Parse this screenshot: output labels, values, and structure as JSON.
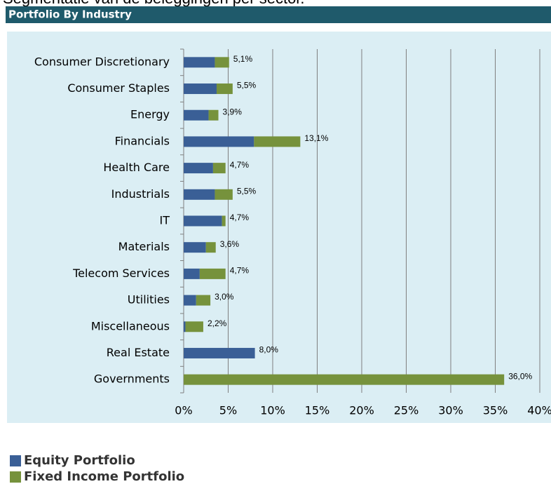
{
  "header_text": "Segmentatie van de beleggingen per sector.",
  "chart_data": {
    "type": "stacked-hbar",
    "title": "Portfolio By Industry",
    "categories": [
      "Consumer Discretionary",
      "Consumer Staples",
      "Energy",
      "Financials",
      "Health Care",
      "Industrials",
      "IT",
      "Materials",
      "Telecom Services",
      "Utilities",
      "Miscellaneous",
      "Real Estate",
      "Governments"
    ],
    "series": [
      {
        "name": "Equity Portfolio",
        "color": "#3a5f96",
        "values": [
          3.5,
          3.7,
          2.8,
          7.9,
          3.3,
          3.5,
          4.3,
          2.5,
          1.8,
          1.4,
          0.2,
          8.0,
          0
        ]
      },
      {
        "name": "Fixed Income Portfolio",
        "color": "#76923c",
        "values": [
          1.6,
          1.8,
          1.1,
          5.2,
          1.4,
          2.0,
          0.4,
          1.1,
          2.9,
          1.6,
          2.0,
          0,
          36.0
        ]
      }
    ],
    "totals": [
      5.1,
      5.5,
      3.9,
      13.1,
      4.7,
      5.5,
      4.7,
      3.6,
      4.7,
      3.0,
      2.2,
      8.0,
      36.0
    ],
    "total_labels": [
      "5,1%",
      "5,5%",
      "3,9%",
      "13,1%",
      "4,7%",
      "5,5%",
      "4,7%",
      "3,6%",
      "4,7%",
      "3,0%",
      "2,2%",
      "8,0%",
      "36,0%"
    ],
    "xlim": [
      0,
      40
    ],
    "xticks": [
      {
        "value": 0,
        "label": "0%"
      },
      {
        "value": 5,
        "label": "5%"
      },
      {
        "value": 10,
        "label": "10%"
      },
      {
        "value": 15,
        "label": "15%"
      },
      {
        "value": 20,
        "label": "20%"
      },
      {
        "value": 25,
        "label": "25%"
      },
      {
        "value": 30,
        "label": "30%"
      },
      {
        "value": 35,
        "label": "35%"
      },
      {
        "value": 40,
        "label": "40%"
      }
    ],
    "grid": true
  }
}
